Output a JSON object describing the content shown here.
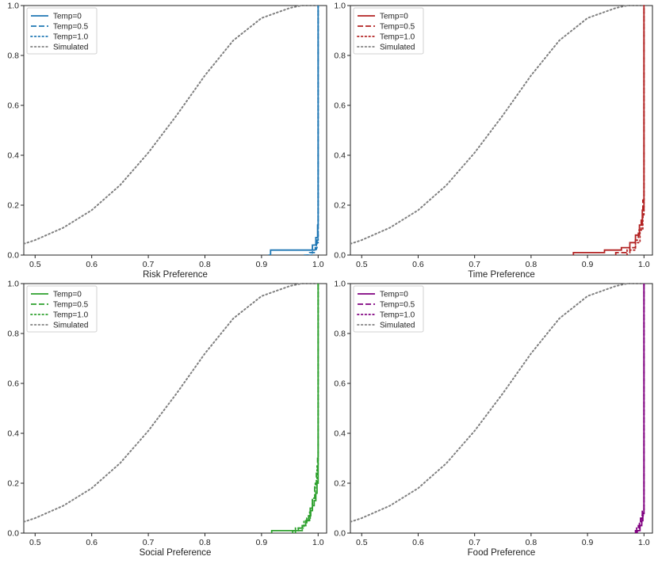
{
  "chart_data": [
    {
      "type": "line",
      "xlabel": "Risk Preference",
      "ylabel": "",
      "xlim": [
        0.48,
        1.015
      ],
      "ylim": [
        0,
        1.0
      ],
      "xticks": [
        "0.5",
        "0.6",
        "0.7",
        "0.8",
        "0.9",
        "1.0"
      ],
      "yticks": [
        "0.0",
        "0.2",
        "0.4",
        "0.6",
        "0.8",
        "1.0"
      ],
      "legend_position": "upper-left",
      "color": "#1f77b4",
      "series": [
        {
          "name": "Temp=0",
          "style": "solid",
          "x": [
            0.912,
            0.916,
            0.916,
            0.99,
            0.99,
            0.996,
            0.996,
            0.999,
            0.999,
            1.0,
            1.0
          ],
          "y": [
            0.0,
            0.0,
            0.02,
            0.02,
            0.04,
            0.04,
            0.07,
            0.07,
            0.12,
            0.12,
            1.0
          ]
        },
        {
          "name": "Temp=0.5",
          "style": "dashed",
          "x": [
            0.975,
            0.985,
            0.985,
            0.995,
            0.995,
            0.998,
            0.998,
            1.0,
            1.0
          ],
          "y": [
            0.0,
            0.0,
            0.01,
            0.01,
            0.03,
            0.03,
            0.06,
            0.06,
            1.0
          ]
        },
        {
          "name": "Temp=1.0",
          "style": "dotted",
          "x": [
            0.98,
            0.99,
            0.99,
            0.997,
            0.997,
            1.0,
            1.0
          ],
          "y": [
            0.0,
            0.0,
            0.02,
            0.02,
            0.05,
            0.05,
            1.0
          ]
        }
      ]
    },
    {
      "type": "line",
      "xlabel": "Time Preference",
      "ylabel": "",
      "xlim": [
        0.48,
        1.015
      ],
      "ylim": [
        0,
        1.0
      ],
      "xticks": [
        "0.5",
        "0.6",
        "0.7",
        "0.8",
        "0.9",
        "1.0"
      ],
      "yticks": [
        "0.0",
        "0.2",
        "0.4",
        "0.6",
        "0.8",
        "1.0"
      ],
      "legend_position": "upper-left",
      "color": "#b22222",
      "series": [
        {
          "name": "Temp=0",
          "style": "solid",
          "x": [
            0.875,
            0.875,
            0.93,
            0.93,
            0.96,
            0.96,
            0.975,
            0.975,
            0.985,
            0.985,
            0.992,
            0.992,
            0.997,
            0.997,
            1.0,
            1.0
          ],
          "y": [
            0.0,
            0.01,
            0.01,
            0.02,
            0.02,
            0.03,
            0.03,
            0.05,
            0.05,
            0.08,
            0.08,
            0.12,
            0.12,
            0.18,
            0.18,
            1.0
          ]
        },
        {
          "name": "Temp=0.5",
          "style": "dashed",
          "x": [
            0.95,
            0.95,
            0.975,
            0.975,
            0.985,
            0.985,
            0.99,
            0.99,
            0.995,
            0.995,
            0.998,
            0.998,
            1.0,
            1.0
          ],
          "y": [
            0.0,
            0.01,
            0.01,
            0.03,
            0.03,
            0.06,
            0.06,
            0.1,
            0.1,
            0.15,
            0.15,
            0.22,
            0.22,
            1.0
          ]
        },
        {
          "name": "Temp=1.0",
          "style": "dotted",
          "x": [
            0.97,
            0.97,
            0.985,
            0.985,
            0.993,
            0.993,
            0.998,
            0.998,
            1.0,
            1.0
          ],
          "y": [
            0.0,
            0.02,
            0.02,
            0.05,
            0.05,
            0.1,
            0.1,
            0.16,
            0.16,
            1.0
          ]
        }
      ]
    },
    {
      "type": "line",
      "xlabel": "Social Preference",
      "ylabel": "",
      "xlim": [
        0.48,
        1.015
      ],
      "ylim": [
        0,
        1.0
      ],
      "xticks": [
        "0.5",
        "0.6",
        "0.7",
        "0.8",
        "0.9",
        "1.0"
      ],
      "yticks": [
        "0.0",
        "0.2",
        "0.4",
        "0.6",
        "0.8",
        "1.0"
      ],
      "legend_position": "upper-left",
      "color": "#2ca02c",
      "series": [
        {
          "name": "Temp=0",
          "style": "solid",
          "x": [
            0.918,
            0.918,
            0.965,
            0.965,
            0.972,
            0.972,
            0.978,
            0.978,
            0.983,
            0.983,
            0.987,
            0.987,
            0.99,
            0.99,
            0.993,
            0.993,
            0.996,
            0.996,
            0.998,
            0.998,
            1.0,
            1.0
          ],
          "y": [
            0.0,
            0.01,
            0.01,
            0.02,
            0.02,
            0.03,
            0.03,
            0.05,
            0.05,
            0.07,
            0.07,
            0.09,
            0.09,
            0.11,
            0.11,
            0.13,
            0.13,
            0.16,
            0.16,
            0.2,
            0.2,
            1.0
          ]
        },
        {
          "name": "Temp=0.5",
          "style": "dashed",
          "x": [
            0.955,
            0.955,
            0.972,
            0.972,
            0.98,
            0.98,
            0.986,
            0.986,
            0.99,
            0.99,
            0.994,
            0.994,
            0.997,
            0.997,
            0.999,
            0.999,
            1.0,
            1.0
          ],
          "y": [
            0.0,
            0.01,
            0.01,
            0.03,
            0.03,
            0.06,
            0.06,
            0.1,
            0.1,
            0.14,
            0.14,
            0.19,
            0.19,
            0.24,
            0.24,
            0.3,
            0.3,
            1.0
          ]
        },
        {
          "name": "Temp=1.0",
          "style": "dotted",
          "x": [
            0.96,
            0.96,
            0.975,
            0.975,
            0.985,
            0.985,
            0.99,
            0.99,
            0.995,
            0.995,
            0.998,
            0.998,
            1.0,
            1.0
          ],
          "y": [
            0.0,
            0.02,
            0.02,
            0.05,
            0.05,
            0.09,
            0.09,
            0.14,
            0.14,
            0.2,
            0.2,
            0.27,
            0.27,
            1.0
          ]
        }
      ]
    },
    {
      "type": "line",
      "xlabel": "Food Preference",
      "ylabel": "",
      "xlim": [
        0.48,
        1.015
      ],
      "ylim": [
        0,
        1.0
      ],
      "xticks": [
        "0.5",
        "0.6",
        "0.7",
        "0.8",
        "0.9",
        "1.0"
      ],
      "yticks": [
        "0.0",
        "0.2",
        "0.4",
        "0.6",
        "0.8",
        "1.0"
      ],
      "legend_position": "upper-left",
      "color": "#800080",
      "series": [
        {
          "name": "Temp=0",
          "style": "solid",
          "x": [
            0.988,
            0.988,
            0.993,
            0.993,
            0.996,
            0.996,
            0.998,
            0.998,
            1.0,
            1.0
          ],
          "y": [
            0.0,
            0.01,
            0.01,
            0.03,
            0.03,
            0.05,
            0.05,
            0.08,
            0.08,
            1.0
          ]
        },
        {
          "name": "Temp=0.5",
          "style": "dashed",
          "x": [
            0.985,
            0.985,
            0.99,
            0.99,
            0.994,
            0.994,
            0.997,
            0.997,
            1.0,
            1.0
          ],
          "y": [
            0.0,
            0.01,
            0.01,
            0.03,
            0.03,
            0.06,
            0.06,
            0.09,
            0.09,
            1.0
          ]
        },
        {
          "name": "Temp=1.0",
          "style": "dotted",
          "x": [
            0.987,
            0.987,
            0.992,
            0.992,
            0.996,
            0.996,
            1.0,
            1.0
          ],
          "y": [
            0.0,
            0.02,
            0.02,
            0.04,
            0.04,
            0.07,
            0.07,
            1.0
          ]
        }
      ]
    }
  ],
  "simulated": {
    "name": "Simulated",
    "color": "#808080",
    "style": "dotted",
    "x": [
      0.48,
      0.5,
      0.55,
      0.6,
      0.65,
      0.7,
      0.75,
      0.8,
      0.85,
      0.9,
      0.95,
      0.97,
      1.0
    ],
    "y": [
      0.045,
      0.06,
      0.11,
      0.18,
      0.28,
      0.41,
      0.56,
      0.72,
      0.86,
      0.95,
      0.99,
      1.0,
      1.0
    ]
  }
}
